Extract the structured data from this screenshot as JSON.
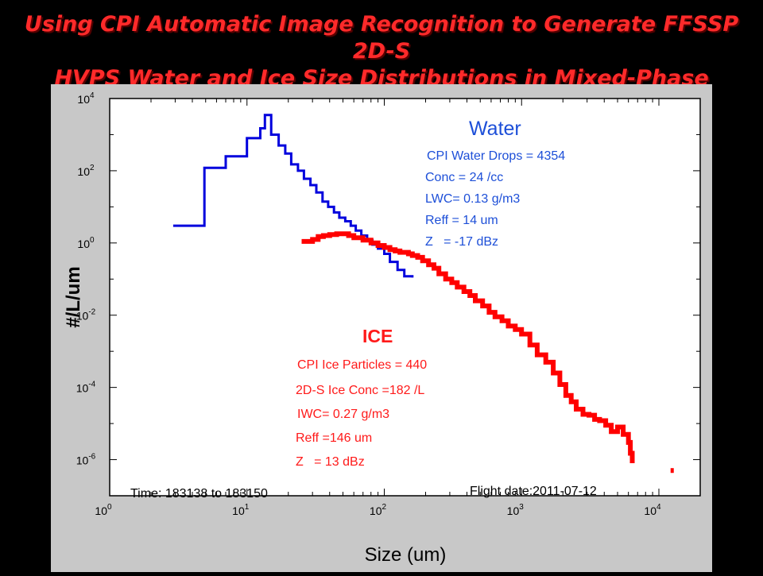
{
  "slide": {
    "title_line1": "Using CPI Automatic Image Recognition to Generate FFSSP 2D-S",
    "title_line2": "HVPS Water and Ice Size Distributions in Mixed-Phase"
  },
  "chart_data": {
    "type": "line",
    "xscale": "log",
    "yscale": "log",
    "xlim": [
      1,
      20000
    ],
    "ylim": [
      1e-07,
      10000
    ],
    "xlabel": "Size (um)",
    "ylabel": "#/L/um",
    "x_ticks": [
      {
        "value": 1,
        "base": "10",
        "exp": "0"
      },
      {
        "value": 10,
        "base": "10",
        "exp": "1"
      },
      {
        "value": 100,
        "base": "10",
        "exp": "2"
      },
      {
        "value": 1000,
        "base": "10",
        "exp": "3"
      },
      {
        "value": 10000,
        "base": "10",
        "exp": "4"
      }
    ],
    "y_ticks": [
      {
        "value": 1e-06,
        "base": "10",
        "exp": "-6"
      },
      {
        "value": 0.0001,
        "base": "10",
        "exp": "-4"
      },
      {
        "value": 0.01,
        "base": "10",
        "exp": "-2"
      },
      {
        "value": 1,
        "base": "10",
        "exp": "0"
      },
      {
        "value": 100,
        "base": "10",
        "exp": "2"
      },
      {
        "value": 10000,
        "base": "10",
        "exp": "4"
      }
    ],
    "grid": false,
    "series": [
      {
        "name": "Water",
        "color": "#0000dd",
        "step": true,
        "x": [
          2.9,
          4.9,
          7.0,
          10.0,
          12.5,
          13.5,
          15.0,
          17.0,
          19.0,
          21.0,
          23.5,
          26.0,
          29.0,
          32.0,
          35.5,
          39.0,
          43.0,
          47.0,
          52.0,
          57.0,
          62.0,
          68.0,
          75.0,
          82.0,
          90.0,
          100.0,
          110.0,
          125.0,
          140.0,
          160.0
        ],
        "y": [
          3.0,
          120,
          250,
          800,
          1500,
          3500,
          1000,
          500,
          300,
          150,
          100,
          60,
          40,
          25,
          14,
          10,
          7,
          5,
          4,
          3,
          2.2,
          1.6,
          1.2,
          0.9,
          0.7,
          0.5,
          0.3,
          0.18,
          0.12,
          0.11
        ]
      },
      {
        "name": "ICE",
        "color": "#ff0000",
        "step": true,
        "x": [
          25,
          30,
          33,
          36,
          40,
          45,
          50,
          55,
          60,
          70,
          80,
          90,
          100,
          110,
          120,
          130,
          140,
          150,
          160,
          175,
          190,
          210,
          230,
          250,
          280,
          310,
          340,
          380,
          420,
          460,
          520,
          580,
          640,
          720,
          800,
          900,
          1000,
          1150,
          1300,
          1500,
          1700,
          1900,
          2100,
          2300,
          2500,
          2800,
          3100,
          3400,
          3700,
          4100,
          4500,
          5000,
          5500,
          6000,
          6200,
          6400
        ],
        "y": [
          1.1,
          1.25,
          1.5,
          1.6,
          1.7,
          1.8,
          1.8,
          1.6,
          1.4,
          1.2,
          1.0,
          0.85,
          0.75,
          0.65,
          0.6,
          0.55,
          0.55,
          0.5,
          0.45,
          0.4,
          0.32,
          0.25,
          0.2,
          0.14,
          0.1,
          0.08,
          0.06,
          0.045,
          0.035,
          0.025,
          0.018,
          0.012,
          0.009,
          0.007,
          0.005,
          0.004,
          0.003,
          0.0015,
          0.0008,
          0.0005,
          0.00025,
          0.00012,
          6e-05,
          4e-05,
          2.5e-05,
          1.8e-05,
          1.7e-05,
          1.3e-05,
          1.2e-05,
          9e-06,
          6e-06,
          8e-06,
          5e-06,
          3e-06,
          1.5e-06,
          8e-07
        ]
      }
    ],
    "extra_points": [
      {
        "name": "ice-outlier",
        "x": 12500,
        "y": 5e-07,
        "color": "#ff0000"
      }
    ],
    "annotations": {
      "water": {
        "heading": "Water",
        "lines": [
          "CPI Water Drops = 4354",
          "Conc = 24 /cc",
          "LWC= 0.13 g/m3",
          "Reff = 14 um",
          "Z   = -17 dBz"
        ]
      },
      "ice": {
        "heading": "ICE",
        "lines": [
          "CPI Ice Particles = 440",
          "2D-S Ice Conc =182 /L",
          "IWC= 0.27 g/m3",
          "Reff =146 um",
          "Z   = 13 dBz"
        ]
      },
      "time": "Time: 183138 to 183150",
      "flight_date": "Flight date:2011-07-12"
    }
  }
}
